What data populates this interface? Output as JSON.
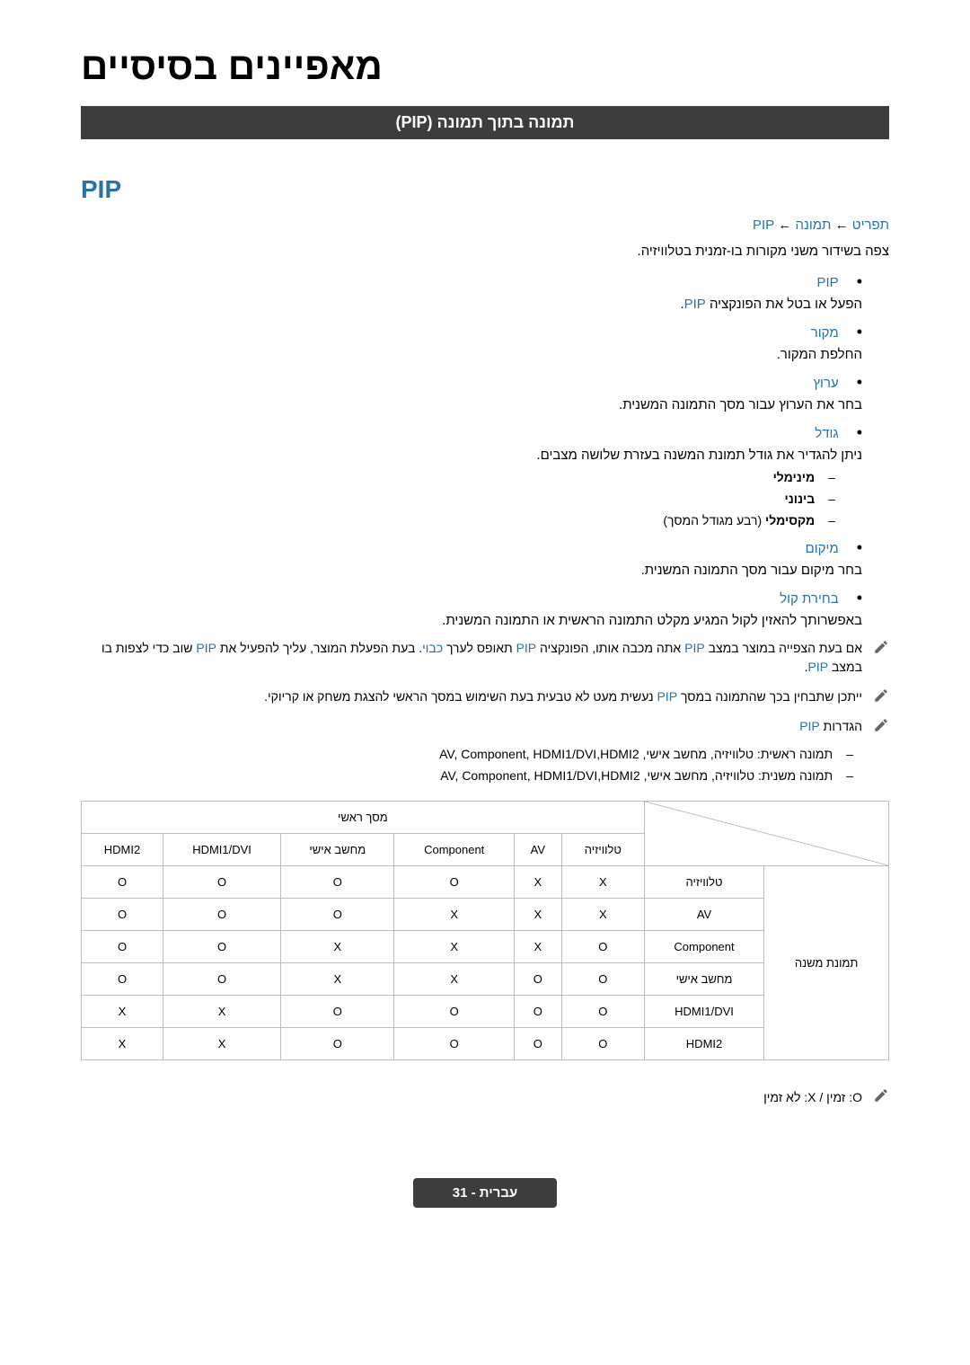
{
  "main_title": "מאפיינים בסיסיים",
  "section_header": "תמונה בתוך תמונה (PIP)",
  "sub_title": "PIP",
  "breadcrumb": {
    "menu": "תפריט",
    "arrow": " ← ",
    "image": "תמונה",
    "pip": "PIP"
  },
  "description": "צפה בשידור משני מקורות בו-זמנית בטלוויזיה.",
  "items": [
    {
      "label": "PIP",
      "desc_prefix": "הפעל או בטל את הפונקציה ",
      "desc_highlight": "PIP",
      "desc_suffix": "."
    },
    {
      "label": "מקור",
      "desc": "החלפת המקור."
    },
    {
      "label": "ערוץ",
      "desc": "בחר את הערוץ עבור מסך התמונה המשנית."
    },
    {
      "label": "גודל",
      "desc": "ניתן להגדיר את גודל תמונת המשנה בעזרת שלושה מצבים.",
      "sub_items": [
        {
          "bold": "מינימלי",
          "extra": ""
        },
        {
          "bold": "בינוני",
          "extra": ""
        },
        {
          "bold": "מקסימלי",
          "extra": " (רבע מגודל המסך)"
        }
      ]
    },
    {
      "label": "מיקום",
      "desc": "בחר מיקום עבור מסך התמונה המשנית."
    },
    {
      "label": "בחירת קול",
      "desc": "באפשרותך להאזין לקול המגיע מקלט התמונה הראשית או התמונה המשנית."
    }
  ],
  "notes": [
    {
      "parts": [
        {
          "text": "אם בעת הצפייה במוצר במצב ",
          "highlight": false
        },
        {
          "text": "PIP",
          "highlight": true
        },
        {
          "text": " אתה מכבה אותו, הפונקציה ",
          "highlight": false
        },
        {
          "text": "PIP",
          "highlight": true
        },
        {
          "text": " תאופס לערך ",
          "highlight": false
        },
        {
          "text": "כבוי",
          "highlight": true
        },
        {
          "text": ". בעת הפעלת המוצר, עליך להפעיל את ",
          "highlight": false
        },
        {
          "text": "PIP",
          "highlight": true
        },
        {
          "text": " שוב כדי לצפות בו במצב ",
          "highlight": false
        },
        {
          "text": "PIP",
          "highlight": true
        },
        {
          "text": ".",
          "highlight": false
        }
      ]
    },
    {
      "parts": [
        {
          "text": "ייתכן שתבחין בכך שהתמונה במסך ",
          "highlight": false
        },
        {
          "text": "PIP",
          "highlight": true
        },
        {
          "text": " נעשית מעט לא טבעית בעת השימוש במסך הראשי להצגת משחק או קריוקי.",
          "highlight": false
        }
      ]
    },
    {
      "parts": [
        {
          "text": "הגדרות ",
          "highlight": false
        },
        {
          "text": "PIP",
          "highlight": true
        }
      ]
    }
  ],
  "note_sub_items": [
    "תמונה ראשית: טלוויזיה, מחשב אישי, AV, Component, HDMI1/DVI,HDMI2",
    "תמונה משנית: טלוויזיה, מחשב אישי, AV, Component, HDMI1/DVI,HDMI2"
  ],
  "table": {
    "main_screen_label": "מסך ראשי",
    "sub_picture_label": "תמונת משנה",
    "columns": [
      "HDMI2",
      "HDMI1/DVI",
      "מחשב אישי",
      "Component",
      "AV",
      "טלוויזיה"
    ],
    "row_headers": [
      "טלוויזיה",
      "AV",
      "Component",
      "מחשב אישי",
      "HDMI1/DVI",
      "HDMI2"
    ],
    "rows": [
      [
        "O",
        "O",
        "O",
        "O",
        "X",
        "X"
      ],
      [
        "O",
        "O",
        "O",
        "X",
        "X",
        "X"
      ],
      [
        "O",
        "O",
        "X",
        "X",
        "X",
        "O"
      ],
      [
        "O",
        "O",
        "X",
        "X",
        "O",
        "O"
      ],
      [
        "X",
        "X",
        "O",
        "O",
        "O",
        "O"
      ],
      [
        "X",
        "X",
        "O",
        "O",
        "O",
        "O"
      ]
    ]
  },
  "table_note": "O: זמין / X: לא זמין",
  "footer": "עברית - 31"
}
